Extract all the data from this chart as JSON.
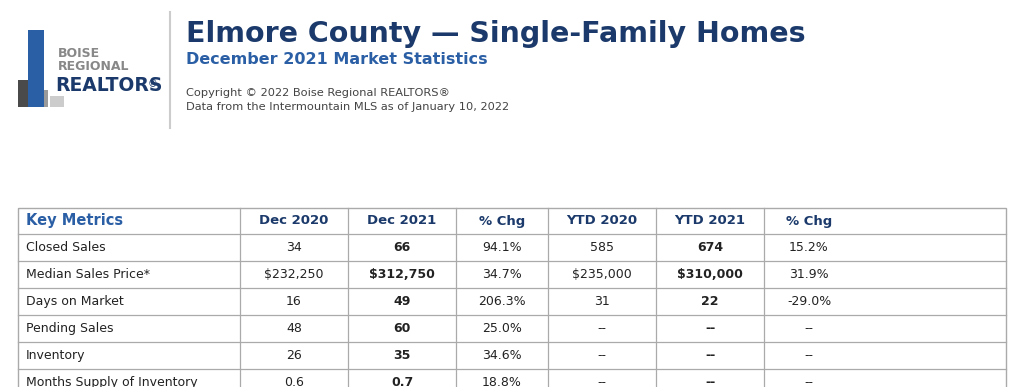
{
  "title": "Elmore County — Single-Family Homes",
  "subtitle": "December 2021 Market Statistics",
  "copyright_line1": "Copyright © 2022 Boise Regional REALTORS®",
  "copyright_line2": "Data from the Intermountain MLS as of January 10, 2022",
  "col_headers": [
    "Key Metrics",
    "Dec 2020",
    "Dec 2021",
    "% Chg",
    "YTD 2020",
    "YTD 2021",
    "% Chg"
  ],
  "rows": [
    [
      "Closed Sales",
      "34",
      "66",
      "94.1%",
      "585",
      "674",
      "15.2%"
    ],
    [
      "Median Sales Price*",
      "$232,250",
      "$312,750",
      "34.7%",
      "$235,000",
      "$310,000",
      "31.9%"
    ],
    [
      "Days on Market",
      "16",
      "49",
      "206.3%",
      "31",
      "22",
      "-29.0%"
    ],
    [
      "Pending Sales",
      "48",
      "60",
      "25.0%",
      "--",
      "--",
      "--"
    ],
    [
      "Inventory",
      "26",
      "35",
      "34.6%",
      "--",
      "--",
      "--"
    ],
    [
      "Months Supply of Inventory",
      "0.6",
      "0.7",
      "18.8%",
      "--",
      "--",
      "--"
    ]
  ],
  "bold_col_indices": [
    2,
    5
  ],
  "title_color": "#1B3A6B",
  "subtitle_color": "#2B5FA5",
  "key_metrics_color": "#2B5FA5",
  "header_text_color": "#1B3A6B",
  "table_border_color": "#AAAAAA",
  "background_color": "#FFFFFF",
  "logo_dark_color": "#4A4A4A",
  "logo_mid_color": "#9A9A9A",
  "logo_light_color": "#CCCCCC",
  "logo_blue_color": "#2B5FA5",
  "logo_navy_color": "#1B3A6B",
  "divider_color": "#CCCCCC"
}
